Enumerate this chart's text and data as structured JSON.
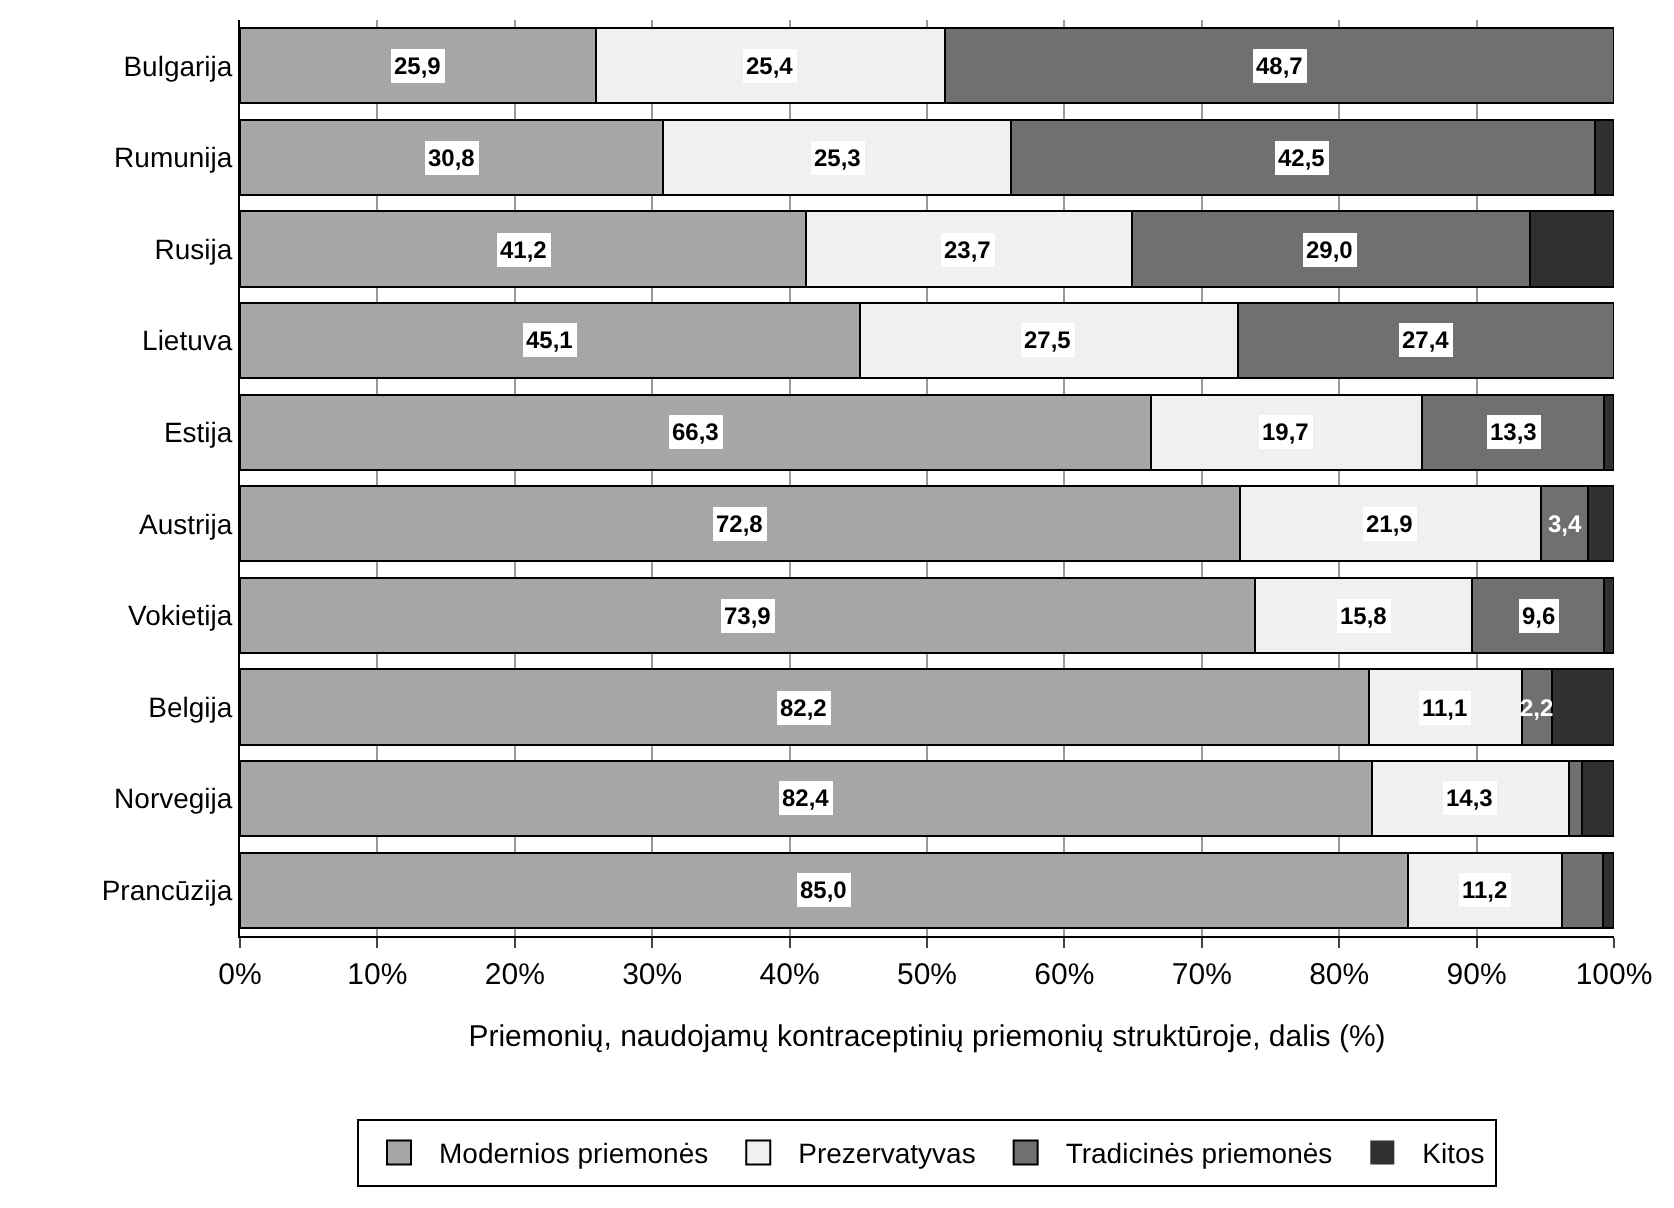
{
  "chart_data": {
    "type": "bar",
    "orientation": "horizontal",
    "stacked": true,
    "xlabel": "Priemonių, naudojamų kontraceptinių priemonių struktūroje, dalis (%)",
    "categories": [
      "Bulgarija",
      "Rumunija",
      "Rusija",
      "Lietuva",
      "Estija",
      "Austrija",
      "Vokietija",
      "Belgija",
      "Norvegija",
      "Prancūzija"
    ],
    "series": [
      {
        "name": "Modernios priemonės",
        "color": "#a6a6a6",
        "values": [
          25.9,
          30.8,
          41.2,
          45.1,
          66.3,
          72.8,
          73.9,
          82.2,
          82.4,
          85.0
        ],
        "value_labels": [
          "25,9",
          "30,8",
          "41,2",
          "45,1",
          "66,3",
          "72,8",
          "73,9",
          "82,2",
          "82,4",
          "85,0"
        ]
      },
      {
        "name": "Prezervatyvas",
        "color": "#f0f0f0",
        "values": [
          25.4,
          25.3,
          23.7,
          27.5,
          19.7,
          21.9,
          15.8,
          11.1,
          14.3,
          11.2
        ],
        "value_labels": [
          "25,4",
          "25,3",
          "23,7",
          "27,5",
          "19,7",
          "21,9",
          "15,8",
          "11,1",
          "14,3",
          "11,2"
        ]
      },
      {
        "name": "Tradicinės priemonės",
        "color": "#707070",
        "values": [
          48.7,
          42.5,
          29.0,
          27.4,
          13.3,
          3.4,
          9.6,
          2.2,
          1.0,
          3.0
        ],
        "value_labels": [
          "48,7",
          "42,5",
          "29,0",
          "27,4",
          "13,3",
          "3,4",
          "9,6",
          "2,2",
          null,
          null
        ]
      },
      {
        "name": "Kitos",
        "color": "#303030",
        "values": [
          0,
          1.4,
          6.1,
          0,
          0.7,
          1.9,
          0.7,
          4.5,
          2.3,
          0.8
        ]
      }
    ],
    "xlim": [
      0,
      100
    ],
    "xticks": [
      {
        "value": 0,
        "label": "0%"
      },
      {
        "value": 10,
        "label": "10%"
      },
      {
        "value": 20,
        "label": "20%"
      },
      {
        "value": 30,
        "label": "30%"
      },
      {
        "value": 40,
        "label": "40%"
      },
      {
        "value": 50,
        "label": "50%"
      },
      {
        "value": 60,
        "label": "60%"
      },
      {
        "value": 70,
        "label": "70%"
      },
      {
        "value": 80,
        "label": "80%"
      },
      {
        "value": 90,
        "label": "90%"
      },
      {
        "value": 100,
        "label": "100%"
      }
    ],
    "grid": "x",
    "legend": "bottom"
  }
}
